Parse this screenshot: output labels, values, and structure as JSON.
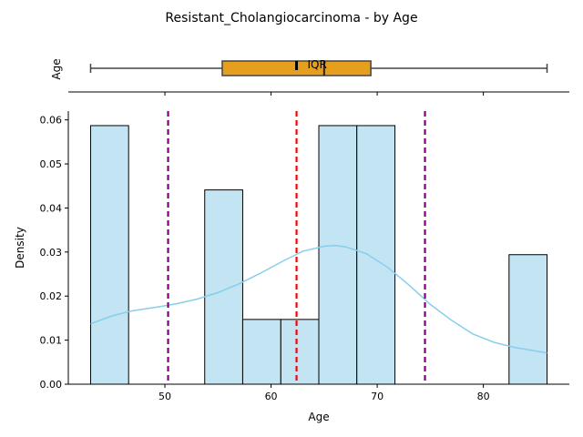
{
  "chart_data": {
    "title": "Resistant_Cholangiocarcinoma - by Age",
    "boxplot": {
      "ylabel": "Age",
      "whisker_low": 43.0,
      "q1": 55.4,
      "median": 65.0,
      "mean": 62.4,
      "q3": 69.4,
      "whisker_high": 86.0,
      "box_color": "#e69f1c",
      "annotation": "IQR"
    },
    "histogram": {
      "type": "bar",
      "xlabel": "Age",
      "ylabel": "Density",
      "xlim": [
        40.9,
        88.1
      ],
      "ylim": [
        0,
        0.062
      ],
      "x_ticks": [
        50,
        60,
        70,
        80
      ],
      "y_ticks": [
        0.0,
        0.01,
        0.02,
        0.03,
        0.04,
        0.05,
        0.06
      ],
      "bin_edges": [
        43.0,
        46.58,
        50.17,
        53.75,
        57.33,
        60.92,
        64.5,
        68.08,
        71.67,
        75.25,
        78.83,
        82.42,
        86.0
      ],
      "values": [
        0.0587,
        0.0,
        0.0,
        0.0441,
        0.0147,
        0.0147,
        0.0587,
        0.0587,
        0.0,
        0.0,
        0.0,
        0.0294
      ],
      "bar_color": "#c2e4f3",
      "kde": {
        "color": "#87ceeb",
        "x": [
          43,
          45,
          47,
          49,
          51,
          53,
          55,
          57,
          59,
          61,
          63,
          65,
          66,
          67,
          69,
          71,
          73,
          75,
          77,
          79,
          81,
          83,
          86
        ],
        "y": [
          0.0137,
          0.0155,
          0.0167,
          0.0174,
          0.0182,
          0.0193,
          0.0208,
          0.0228,
          0.0252,
          0.0278,
          0.0302,
          0.0313,
          0.0315,
          0.0312,
          0.0296,
          0.0265,
          0.0225,
          0.0181,
          0.0145,
          0.0114,
          0.0095,
          0.0083,
          0.0071
        ]
      },
      "vlines": [
        {
          "x": 62.4,
          "color": "#ff0000"
        },
        {
          "x": 50.3,
          "color": "#800080"
        },
        {
          "x": 74.5,
          "color": "#800080"
        }
      ]
    }
  }
}
